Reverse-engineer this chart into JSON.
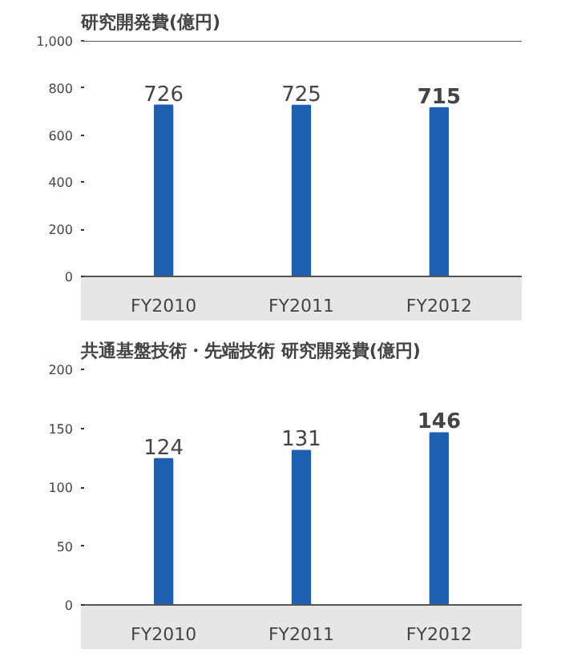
{
  "chart_data": [
    {
      "type": "bar",
      "title": "研究開発費(億円)",
      "categories": [
        "FY2010",
        "FY2011",
        "FY2012"
      ],
      "values": [
        726,
        725,
        715
      ],
      "color": "#1d5fb0",
      "ylim": [
        0,
        1000
      ],
      "yticks": [
        0,
        200,
        400,
        600,
        800,
        {
          "value": 1000,
          "label": "1,000"
        }
      ],
      "data_labels": true,
      "grid": false,
      "ref_lines": [
        {
          "axis": "y",
          "value": 1000
        }
      ]
    },
    {
      "type": "bar",
      "title": "共通基盤技術・先端技術 研究開発費(億円)",
      "categories": [
        "FY2010",
        "FY2011",
        "FY2012"
      ],
      "values": [
        124,
        131,
        146
      ],
      "color": "#1d5fb0",
      "ylim": [
        0,
        200
      ],
      "yticks": [
        0,
        50,
        100,
        150,
        200
      ],
      "data_labels": true,
      "grid": false
    }
  ]
}
